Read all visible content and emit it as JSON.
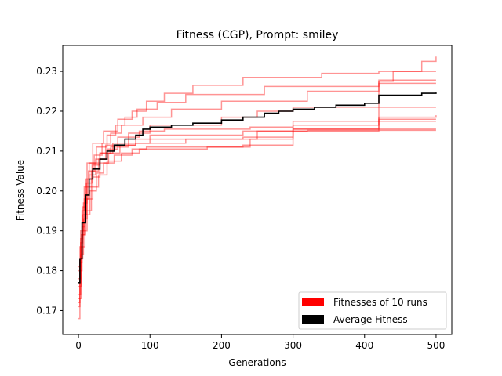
{
  "chart_data": {
    "type": "line",
    "title": "Fitness (CGP), Prompt: smiley",
    "xlabel": "Generations",
    "ylabel": "Fitness Value",
    "xlim": [
      -22,
      522
    ],
    "ylim": [
      0.164,
      0.2365
    ],
    "xticks": [
      0,
      100,
      200,
      300,
      400,
      500
    ],
    "yticks": [
      0.17,
      0.18,
      0.19,
      0.2,
      0.21,
      0.22,
      0.23
    ],
    "xtick_labels": [
      "0",
      "100",
      "200",
      "300",
      "400",
      "500"
    ],
    "ytick_labels": [
      "0.17",
      "0.18",
      "0.19",
      "0.20",
      "0.21",
      "0.22",
      "0.23"
    ],
    "grid": false,
    "legend": {
      "placement": "lower-right",
      "entries": [
        {
          "label": "Fitnesses of 10 runs",
          "color": "#ff0000"
        },
        {
          "label": "Average Fitness",
          "color": "#000000"
        }
      ]
    },
    "series": [
      {
        "style": "run",
        "points": [
          [
            0,
            0.172
          ],
          [
            2,
            0.186
          ],
          [
            5,
            0.195
          ],
          [
            8,
            0.201
          ],
          [
            12,
            0.207
          ],
          [
            20,
            0.212
          ],
          [
            35,
            0.215
          ],
          [
            55,
            0.218
          ],
          [
            75,
            0.22
          ],
          [
            95,
            0.2225
          ],
          [
            120,
            0.2245
          ],
          [
            160,
            0.2265
          ],
          [
            230,
            0.2285
          ],
          [
            340,
            0.2295
          ],
          [
            420,
            0.23
          ],
          [
            480,
            0.2325
          ],
          [
            500,
            0.2337
          ]
        ]
      },
      {
        "style": "run",
        "points": [
          [
            0,
            0.178
          ],
          [
            3,
            0.188
          ],
          [
            6,
            0.196
          ],
          [
            10,
            0.203
          ],
          [
            15,
            0.207
          ],
          [
            25,
            0.211
          ],
          [
            40,
            0.214
          ],
          [
            52,
            0.2165
          ],
          [
            65,
            0.2185
          ],
          [
            82,
            0.2205
          ],
          [
            110,
            0.2222
          ],
          [
            150,
            0.2242
          ],
          [
            260,
            0.2262
          ],
          [
            420,
            0.2278
          ],
          [
            500,
            0.2278
          ]
        ]
      },
      {
        "style": "run",
        "points": [
          [
            0,
            0.176
          ],
          [
            4,
            0.189
          ],
          [
            8,
            0.198
          ],
          [
            14,
            0.205
          ],
          [
            22,
            0.209
          ],
          [
            33,
            0.212
          ],
          [
            45,
            0.2145
          ],
          [
            60,
            0.2165
          ],
          [
            90,
            0.2185
          ],
          [
            130,
            0.2205
          ],
          [
            200,
            0.2225
          ],
          [
            320,
            0.225
          ],
          [
            420,
            0.2275
          ],
          [
            440,
            0.23
          ],
          [
            500,
            0.23
          ]
        ]
      },
      {
        "style": "run",
        "points": [
          [
            0,
            0.174
          ],
          [
            3,
            0.184
          ],
          [
            7,
            0.193
          ],
          [
            12,
            0.201
          ],
          [
            18,
            0.205
          ],
          [
            28,
            0.208
          ],
          [
            40,
            0.2105
          ],
          [
            55,
            0.2115
          ],
          [
            80,
            0.212
          ],
          [
            150,
            0.213
          ],
          [
            250,
            0.215
          ],
          [
            300,
            0.2165
          ],
          [
            420,
            0.219
          ],
          [
            420,
            0.227
          ],
          [
            500,
            0.227
          ]
        ]
      },
      {
        "style": "run",
        "points": [
          [
            0,
            0.18
          ],
          [
            5,
            0.191
          ],
          [
            9,
            0.199
          ],
          [
            15,
            0.204
          ],
          [
            24,
            0.208
          ],
          [
            38,
            0.2115
          ],
          [
            55,
            0.2135
          ],
          [
            85,
            0.215
          ],
          [
            120,
            0.2155
          ],
          [
            240,
            0.216
          ],
          [
            300,
            0.2175
          ],
          [
            420,
            0.218
          ],
          [
            500,
            0.218
          ]
        ]
      },
      {
        "style": "run",
        "points": [
          [
            0,
            0.168
          ],
          [
            2,
            0.182
          ],
          [
            5,
            0.189
          ],
          [
            10,
            0.195
          ],
          [
            18,
            0.201
          ],
          [
            28,
            0.204
          ],
          [
            40,
            0.2075
          ],
          [
            60,
            0.2095
          ],
          [
            85,
            0.2105
          ],
          [
            180,
            0.211
          ],
          [
            240,
            0.213
          ],
          [
            300,
            0.215
          ],
          [
            420,
            0.2175
          ],
          [
            500,
            0.2175
          ]
        ]
      },
      {
        "style": "run",
        "points": [
          [
            0,
            0.181
          ],
          [
            3,
            0.19
          ],
          [
            7,
            0.197
          ],
          [
            12,
            0.203
          ],
          [
            20,
            0.207
          ],
          [
            30,
            0.2095
          ],
          [
            45,
            0.211
          ],
          [
            70,
            0.212
          ],
          [
            100,
            0.213
          ],
          [
            230,
            0.2135
          ],
          [
            300,
            0.2155
          ],
          [
            420,
            0.2155
          ],
          [
            500,
            0.2155
          ]
        ]
      },
      {
        "style": "run",
        "points": [
          [
            0,
            0.173
          ],
          [
            4,
            0.186
          ],
          [
            9,
            0.194
          ],
          [
            16,
            0.2
          ],
          [
            25,
            0.2045
          ],
          [
            35,
            0.207
          ],
          [
            50,
            0.209
          ],
          [
            75,
            0.2105
          ],
          [
            95,
            0.211
          ],
          [
            230,
            0.2115
          ],
          [
            300,
            0.2155
          ],
          [
            420,
            0.2185
          ],
          [
            500,
            0.219
          ]
        ]
      },
      {
        "style": "run",
        "points": [
          [
            0,
            0.177
          ],
          [
            3,
            0.187
          ],
          [
            6,
            0.194
          ],
          [
            11,
            0.202
          ],
          [
            19,
            0.2065
          ],
          [
            30,
            0.2095
          ],
          [
            48,
            0.212
          ],
          [
            70,
            0.2145
          ],
          [
            100,
            0.2165
          ],
          [
            200,
            0.2185
          ],
          [
            250,
            0.22
          ],
          [
            300,
            0.221
          ],
          [
            420,
            0.221
          ],
          [
            500,
            0.221
          ]
        ]
      },
      {
        "style": "run",
        "points": [
          [
            0,
            0.171
          ],
          [
            2,
            0.183
          ],
          [
            6,
            0.19
          ],
          [
            12,
            0.198
          ],
          [
            20,
            0.2035
          ],
          [
            30,
            0.207
          ],
          [
            42,
            0.2095
          ],
          [
            58,
            0.2115
          ],
          [
            80,
            0.213
          ],
          [
            100,
            0.214
          ],
          [
            230,
            0.215
          ],
          [
            320,
            0.2152
          ],
          [
            420,
            0.2152
          ],
          [
            500,
            0.2152
          ]
        ]
      },
      {
        "style": "average",
        "points": [
          [
            0,
            0.177
          ],
          [
            2,
            0.183
          ],
          [
            5,
            0.192
          ],
          [
            10,
            0.199
          ],
          [
            15,
            0.203
          ],
          [
            20,
            0.2055
          ],
          [
            30,
            0.208
          ],
          [
            40,
            0.21
          ],
          [
            50,
            0.2115
          ],
          [
            65,
            0.213
          ],
          [
            80,
            0.214
          ],
          [
            90,
            0.2155
          ],
          [
            100,
            0.216
          ],
          [
            130,
            0.2165
          ],
          [
            160,
            0.217
          ],
          [
            200,
            0.2178
          ],
          [
            230,
            0.2185
          ],
          [
            260,
            0.2195
          ],
          [
            280,
            0.22
          ],
          [
            300,
            0.2205
          ],
          [
            330,
            0.221
          ],
          [
            360,
            0.2215
          ],
          [
            400,
            0.222
          ],
          [
            420,
            0.2225
          ],
          [
            420,
            0.224
          ],
          [
            480,
            0.2245
          ],
          [
            500,
            0.2247
          ]
        ]
      }
    ],
    "colors": {
      "run": "#ff0000",
      "average": "#000000"
    }
  }
}
